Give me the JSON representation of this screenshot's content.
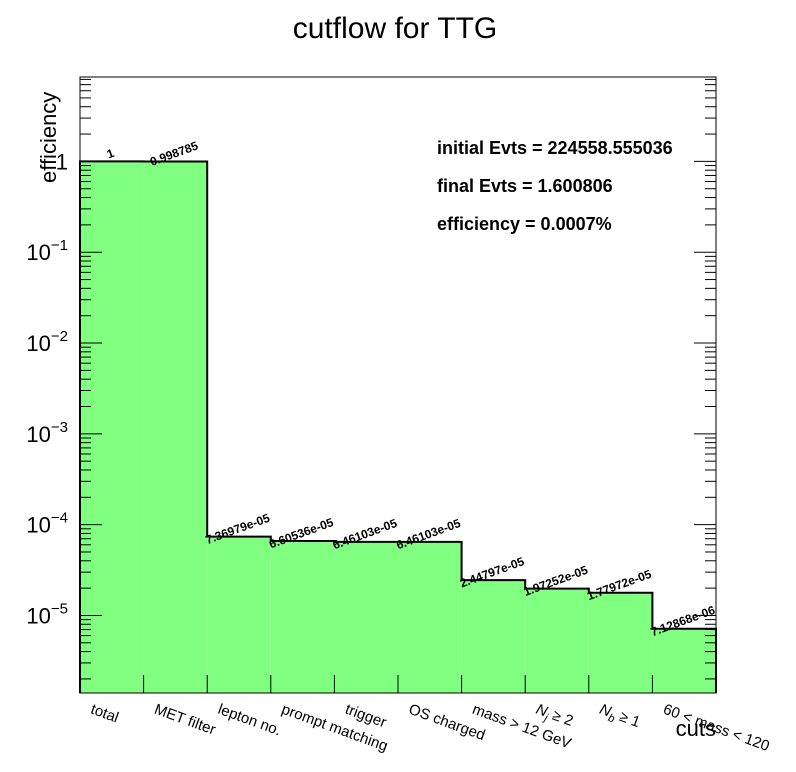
{
  "chart_data": {
    "type": "bar",
    "title": "cutflow for TTG",
    "xlabel": "cuts",
    "ylabel": "efficiency",
    "yscale": "log",
    "ylim": [
      1.4e-06,
      8.5
    ],
    "fill_color": "#80ff80",
    "line_color": "#000000",
    "categories": [
      "total",
      "MET filter",
      "lepton no.",
      "prompt matching",
      "trigger",
      "OS charged",
      "mass > 12 GeV",
      "N_j ≥ 2",
      "N_b ≥ 1",
      "60 < mass < 120"
    ],
    "values": [
      1,
      0.998785,
      7.36979e-05,
      6.60536e-05,
      6.46103e-05,
      6.46103e-05,
      2.44797e-05,
      1.97252e-05,
      1.77972e-05,
      7.12868e-06
    ],
    "data_labels": [
      "1",
      "0.998785",
      "7.36979e-05",
      "6.60536e-05",
      "6.46103e-05",
      "6.46103e-05",
      "2.44797e-05",
      "1.97252e-05",
      "1.77972e-05",
      "7.12868e-06"
    ],
    "y_ticks": [
      {
        "value": 1,
        "base": "1",
        "exp": ""
      },
      {
        "value": 0.1,
        "base": "10",
        "exp": "−1"
      },
      {
        "value": 0.01,
        "base": "10",
        "exp": "−2"
      },
      {
        "value": 0.001,
        "base": "10",
        "exp": "−3"
      },
      {
        "value": 0.0001,
        "base": "10",
        "exp": "−4"
      },
      {
        "value": 1e-05,
        "base": "10",
        "exp": "−5"
      }
    ],
    "grid": false,
    "annotations": [
      "initial Evts = 224558.555036",
      "final Evts = 1.600806",
      "efficiency = 0.0007%"
    ]
  }
}
